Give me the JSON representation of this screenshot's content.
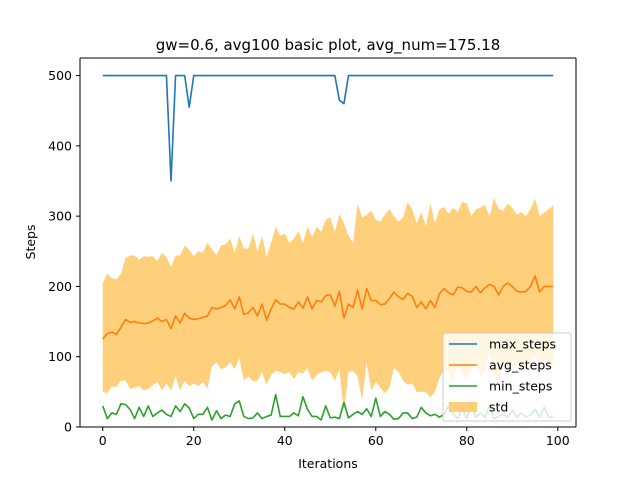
{
  "chart_data": {
    "type": "line",
    "title": "gw=0.6, avg100 basic plot, avg_num=175.18",
    "xlabel": "Iterations",
    "ylabel": "Steps",
    "xlim": [
      -5,
      104
    ],
    "ylim": [
      0,
      525
    ],
    "xticks": [
      0,
      20,
      40,
      60,
      80,
      100
    ],
    "yticks": [
      0,
      100,
      200,
      300,
      400,
      500
    ],
    "grid": false,
    "legend_position": "lower-right",
    "x_start": 0,
    "series": [
      {
        "name": "max_steps",
        "kind": "line",
        "color": "#1f77b4",
        "values": [
          500,
          500,
          500,
          500,
          500,
          500,
          500,
          500,
          500,
          500,
          500,
          500,
          500,
          500,
          500,
          350,
          500,
          500,
          500,
          455,
          500,
          500,
          500,
          500,
          500,
          500,
          500,
          500,
          500,
          500,
          500,
          500,
          500,
          500,
          500,
          500,
          500,
          500,
          500,
          500,
          500,
          500,
          500,
          500,
          500,
          500,
          500,
          500,
          500,
          500,
          500,
          500,
          465,
          460,
          500,
          500,
          500,
          500,
          500,
          500,
          500,
          500,
          500,
          500,
          500,
          500,
          500,
          500,
          500,
          500,
          500,
          500,
          500,
          500,
          500,
          500,
          500,
          500,
          500,
          500,
          500,
          500,
          500,
          500,
          500,
          500,
          500,
          500,
          500,
          500,
          500,
          500,
          500,
          500,
          500,
          500,
          500,
          500,
          500,
          500
        ]
      },
      {
        "name": "avg_steps",
        "kind": "line",
        "color": "#ff7f0e",
        "values": [
          125,
          133,
          135,
          132,
          142,
          153,
          149,
          150,
          148,
          147,
          148,
          151,
          155,
          150,
          153,
          140,
          158,
          148,
          162,
          155,
          153,
          154,
          156,
          158,
          170,
          168,
          170,
          173,
          181,
          168,
          185,
          160,
          163,
          170,
          158,
          175,
          152,
          168,
          181,
          175,
          175,
          170,
          168,
          178,
          169,
          185,
          168,
          180,
          178,
          187,
          188,
          172,
          193,
          155,
          175,
          170,
          195,
          168,
          197,
          180,
          180,
          174,
          175,
          183,
          192,
          185,
          182,
          190,
          186,
          170,
          178,
          168,
          180,
          170,
          190,
          197,
          191,
          188,
          199,
          198,
          193,
          192,
          200,
          191,
          198,
          203,
          200,
          188,
          200,
          205,
          200,
          193,
          192,
          193,
          200,
          215,
          192,
          200,
          200,
          200
        ]
      },
      {
        "name": "min_steps",
        "kind": "line",
        "color": "#2ca02c",
        "values": [
          30,
          12,
          20,
          18,
          33,
          32,
          25,
          12,
          28,
          15,
          30,
          15,
          20,
          24,
          18,
          15,
          30,
          22,
          33,
          27,
          12,
          18,
          18,
          28,
          10,
          23,
          12,
          17,
          15,
          33,
          37,
          15,
          12,
          13,
          20,
          12,
          15,
          17,
          46,
          15,
          15,
          15,
          20,
          16,
          43,
          25,
          15,
          15,
          10,
          30,
          13,
          14,
          12,
          35,
          13,
          18,
          22,
          18,
          26,
          15,
          41,
          15,
          22,
          18,
          11,
          12,
          20,
          20,
          12,
          14,
          28,
          20,
          16,
          18,
          14,
          18,
          30,
          18,
          12,
          26,
          12,
          35,
          14,
          20,
          14,
          30,
          12,
          15,
          18,
          14,
          24,
          14,
          20,
          14,
          17,
          25,
          14,
          28,
          14,
          14
        ]
      },
      {
        "name": "std",
        "kind": "band",
        "color": "#ffc864",
        "upper": [
          205,
          218,
          212,
          210,
          218,
          240,
          244,
          244,
          238,
          243,
          242,
          243,
          236,
          248,
          242,
          228,
          244,
          244,
          258,
          252,
          243,
          250,
          248,
          262,
          253,
          244,
          258,
          260,
          268,
          248,
          272,
          254,
          254,
          275,
          250,
          272,
          242,
          262,
          285,
          272,
          275,
          262,
          268,
          278,
          262,
          285,
          270,
          285,
          278,
          295,
          298,
          278,
          303,
          290,
          272,
          262,
          318,
          298,
          302,
          308,
          295,
          292,
          302,
          310,
          300,
          292,
          298,
          320,
          310,
          290,
          306,
          286,
          318,
          290,
          310,
          313,
          303,
          312,
          306,
          320,
          318,
          300,
          310,
          312,
          316,
          300,
          326,
          310,
          308,
          318,
          312,
          302,
          306,
          300,
          310,
          325,
          300,
          305,
          310,
          315
        ],
        "lower": [
          50,
          48,
          58,
          57,
          66,
          66,
          54,
          56,
          58,
          52,
          54,
          60,
          64,
          52,
          62,
          52,
          72,
          52,
          66,
          58,
          62,
          58,
          64,
          54,
          86,
          92,
          82,
          85,
          92,
          82,
          98,
          66,
          72,
          65,
          66,
          78,
          60,
          74,
          80,
          78,
          75,
          78,
          68,
          78,
          76,
          84,
          66,
          74,
          78,
          80,
          78,
          66,
          82,
          20,
          78,
          80,
          72,
          38,
          92,
          52,
          64,
          56,
          48,
          56,
          84,
          78,
          66,
          60,
          62,
          50,
          50,
          50,
          42,
          50,
          70,
          80,
          80,
          64,
          92,
          76,
          68,
          84,
          90,
          70,
          80,
          105,
          74,
          66,
          92,
          92,
          88,
          84,
          78,
          86,
          90,
          105,
          84,
          95,
          90,
          85
        ]
      }
    ]
  }
}
